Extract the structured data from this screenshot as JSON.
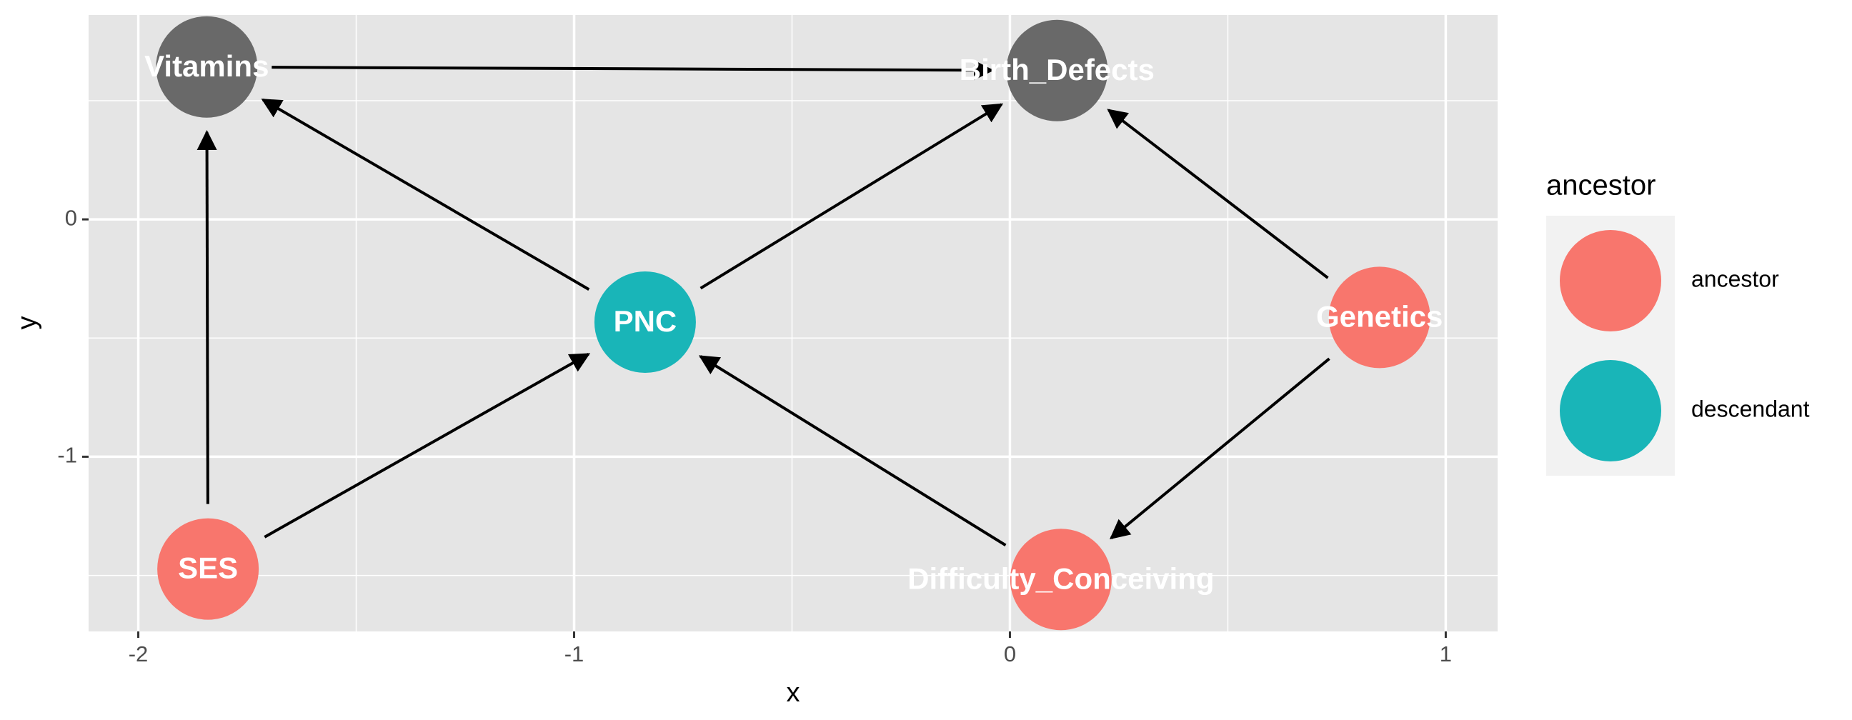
{
  "chart_data": {
    "type": "dag",
    "x_label": "x",
    "y_label": "y",
    "xlim": [
      -2.114,
      1.119
    ],
    "ylim": [
      -1.736,
      0.861
    ],
    "xticks": [
      -2,
      -1,
      0,
      1
    ],
    "yticks": [
      0,
      -1
    ],
    "xminor": [
      -1.5,
      -0.5,
      0.5
    ],
    "yminor": [
      0.5,
      -0.5,
      -1.5
    ],
    "grid": true,
    "panel_color": "#e5e5e5",
    "legend_title": "ancestor",
    "legend_position": "right",
    "legend": [
      {
        "name": "ancestor",
        "color": "#f8766d"
      },
      {
        "name": "descendant",
        "color": "#19b5b8"
      }
    ],
    "nodes": [
      {
        "name": "Vitamins",
        "x": -1.843,
        "y": 0.642,
        "color": "#696969"
      },
      {
        "name": "Birth_Defects",
        "x": 0.108,
        "y": 0.627,
        "color": "#696969"
      },
      {
        "name": "PNC",
        "x": -0.837,
        "y": -0.433,
        "color": "#19b5b8"
      },
      {
        "name": "Genetics",
        "x": 0.848,
        "y": -0.413,
        "color": "#f8766d"
      },
      {
        "name": "SES",
        "x": -1.84,
        "y": -1.473,
        "color": "#f8766d"
      },
      {
        "name": "Difficulty_Conceiving",
        "x": 0.117,
        "y": -1.517,
        "color": "#f8766d"
      }
    ],
    "edges": [
      [
        "Vitamins",
        "Birth_Defects"
      ],
      [
        "PNC",
        "Vitamins"
      ],
      [
        "PNC",
        "Birth_Defects"
      ],
      [
        "SES",
        "Vitamins"
      ],
      [
        "SES",
        "PNC"
      ],
      [
        "Genetics",
        "Birth_Defects"
      ],
      [
        "Genetics",
        "Difficulty_Conceiving"
      ],
      [
        "Difficulty_Conceiving",
        "PNC"
      ]
    ]
  }
}
